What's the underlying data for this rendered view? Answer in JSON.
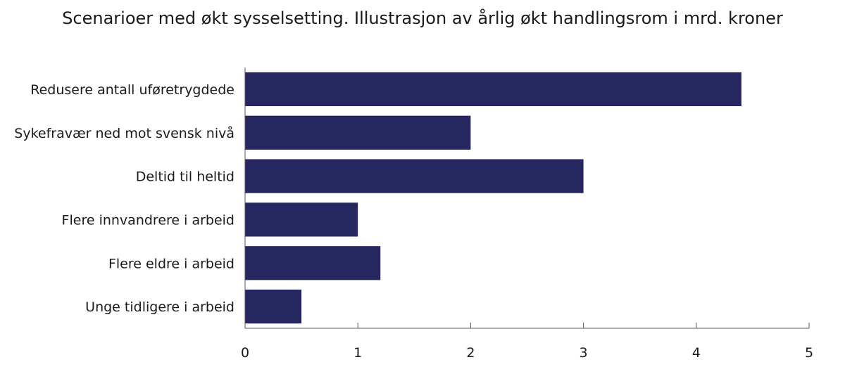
{
  "chart_data": {
    "type": "bar",
    "orientation": "horizontal",
    "title": "Scenarioer med økt sysselsetting. Illustrasjon av årlig økt handlingsrom i mrd. kroner",
    "categories": [
      "Redusere antall uføretrygdede",
      "Sykefravær ned mot svensk nivå",
      "Deltid til heltid",
      "Flere innvandrere i arbeid",
      "Flere eldre i arbeid",
      "Unge tidligere i arbeid"
    ],
    "values": [
      4.4,
      2.0,
      3.0,
      1.0,
      1.2,
      0.5
    ],
    "xlim": [
      0,
      5
    ],
    "xticks": [
      0,
      1,
      2,
      3,
      4,
      5
    ],
    "xlabel": "",
    "ylabel": "",
    "grid": false,
    "legend": "none",
    "bar_color": "#262660"
  }
}
